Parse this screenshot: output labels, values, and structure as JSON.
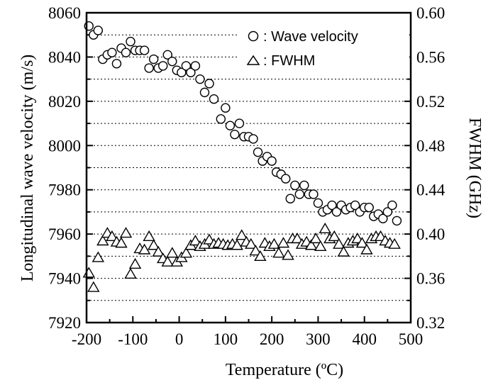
{
  "chart_data": {
    "type": "scatter",
    "xlabel": "Temperature (ºC)",
    "ylabel": "Longitudinal wave velocity (m/s)",
    "y2label": "FWHM (GHz)",
    "xlim": [
      -200,
      500
    ],
    "ylim": [
      7920,
      8060
    ],
    "y2lim": [
      0.32,
      0.6
    ],
    "x_ticks": [
      "-200",
      "-100",
      "0",
      "100",
      "200",
      "300",
      "400",
      "500"
    ],
    "y_ticks": [
      "7920",
      "7940",
      "7960",
      "7980",
      "8000",
      "8020",
      "8040",
      "8060"
    ],
    "y2_ticks": [
      "0.32",
      "0.36",
      "0.40",
      "0.44",
      "0.48",
      "0.52",
      "0.56",
      "0.60"
    ],
    "grid": "horizontal dotted",
    "legend_position": "top-right",
    "series": [
      {
        "name": ": Wave velocity",
        "marker": "circle",
        "axis": "left",
        "points": [
          [
            -195,
            8054
          ],
          [
            -185,
            8050
          ],
          [
            -175,
            8052
          ],
          [
            -165,
            8039
          ],
          [
            -155,
            8041
          ],
          [
            -145,
            8042
          ],
          [
            -135,
            8037
          ],
          [
            -125,
            8044
          ],
          [
            -115,
            8042
          ],
          [
            -105,
            8047
          ],
          [
            -95,
            8043
          ],
          [
            -85,
            8043
          ],
          [
            -75,
            8043
          ],
          [
            -65,
            8035
          ],
          [
            -55,
            8039
          ],
          [
            -45,
            8035
          ],
          [
            -35,
            8036
          ],
          [
            -25,
            8041
          ],
          [
            -15,
            8038
          ],
          [
            -5,
            8034
          ],
          [
            5,
            8033
          ],
          [
            15,
            8036
          ],
          [
            25,
            8033
          ],
          [
            35,
            8036
          ],
          [
            45,
            8030
          ],
          [
            55,
            8024
          ],
          [
            65,
            8028
          ],
          [
            75,
            8021
          ],
          [
            90,
            8012
          ],
          [
            100,
            8017
          ],
          [
            110,
            8009
          ],
          [
            120,
            8005
          ],
          [
            130,
            8010
          ],
          [
            140,
            8004
          ],
          [
            150,
            8004
          ],
          [
            160,
            8003
          ],
          [
            170,
            7997
          ],
          [
            180,
            7993
          ],
          [
            190,
            7995
          ],
          [
            200,
            7993
          ],
          [
            210,
            7988
          ],
          [
            220,
            7987
          ],
          [
            230,
            7985
          ],
          [
            240,
            7976
          ],
          [
            250,
            7982
          ],
          [
            260,
            7978
          ],
          [
            270,
            7982
          ],
          [
            280,
            7978
          ],
          [
            290,
            7978
          ],
          [
            300,
            7974
          ],
          [
            310,
            7970
          ],
          [
            320,
            7971
          ],
          [
            330,
            7973
          ],
          [
            340,
            7970
          ],
          [
            350,
            7973
          ],
          [
            360,
            7971
          ],
          [
            370,
            7972
          ],
          [
            380,
            7973
          ],
          [
            390,
            7970
          ],
          [
            400,
            7972
          ],
          [
            410,
            7972
          ],
          [
            420,
            7968
          ],
          [
            430,
            7969
          ],
          [
            440,
            7967
          ],
          [
            450,
            7970
          ],
          [
            460,
            7973
          ],
          [
            470,
            7966
          ]
        ]
      },
      {
        "name": ": FWHM",
        "marker": "triangle",
        "axis": "right",
        "points": [
          [
            -195,
            0.365
          ],
          [
            -185,
            0.352
          ],
          [
            -175,
            0.379
          ],
          [
            -165,
            0.394
          ],
          [
            -155,
            0.401
          ],
          [
            -145,
            0.398
          ],
          [
            -135,
            0.393
          ],
          [
            -125,
            0.392
          ],
          [
            -115,
            0.401
          ],
          [
            -105,
            0.364
          ],
          [
            -95,
            0.373
          ],
          [
            -85,
            0.387
          ],
          [
            -75,
            0.386
          ],
          [
            -65,
            0.398
          ],
          [
            -55,
            0.39
          ],
          [
            -45,
            0.384
          ],
          [
            -35,
            0.378
          ],
          [
            -25,
            0.375
          ],
          [
            -15,
            0.383
          ],
          [
            -5,
            0.375
          ],
          [
            5,
            0.379
          ],
          [
            15,
            0.383
          ],
          [
            25,
            0.39
          ],
          [
            35,
            0.394
          ],
          [
            45,
            0.389
          ],
          [
            55,
            0.391
          ],
          [
            65,
            0.395
          ],
          [
            75,
            0.391
          ],
          [
            85,
            0.392
          ],
          [
            95,
            0.391
          ],
          [
            105,
            0.39
          ],
          [
            115,
            0.391
          ],
          [
            125,
            0.39
          ],
          [
            135,
            0.399
          ],
          [
            145,
            0.393
          ],
          [
            155,
            0.391
          ],
          [
            165,
            0.385
          ],
          [
            175,
            0.38
          ],
          [
            185,
            0.392
          ],
          [
            195,
            0.389
          ],
          [
            205,
            0.391
          ],
          [
            215,
            0.383
          ],
          [
            225,
            0.392
          ],
          [
            235,
            0.381
          ],
          [
            245,
            0.396
          ],
          [
            255,
            0.396
          ],
          [
            265,
            0.391
          ],
          [
            275,
            0.393
          ],
          [
            285,
            0.39
          ],
          [
            295,
            0.396
          ],
          [
            305,
            0.389
          ],
          [
            315,
            0.405
          ],
          [
            325,
            0.396
          ],
          [
            335,
            0.398
          ],
          [
            345,
            0.391
          ],
          [
            355,
            0.384
          ],
          [
            365,
            0.392
          ],
          [
            375,
            0.394
          ],
          [
            385,
            0.396
          ],
          [
            395,
            0.392
          ],
          [
            405,
            0.386
          ],
          [
            415,
            0.396
          ],
          [
            425,
            0.398
          ],
          [
            435,
            0.398
          ],
          [
            445,
            0.394
          ],
          [
            455,
            0.392
          ],
          [
            465,
            0.391
          ]
        ]
      }
    ]
  }
}
